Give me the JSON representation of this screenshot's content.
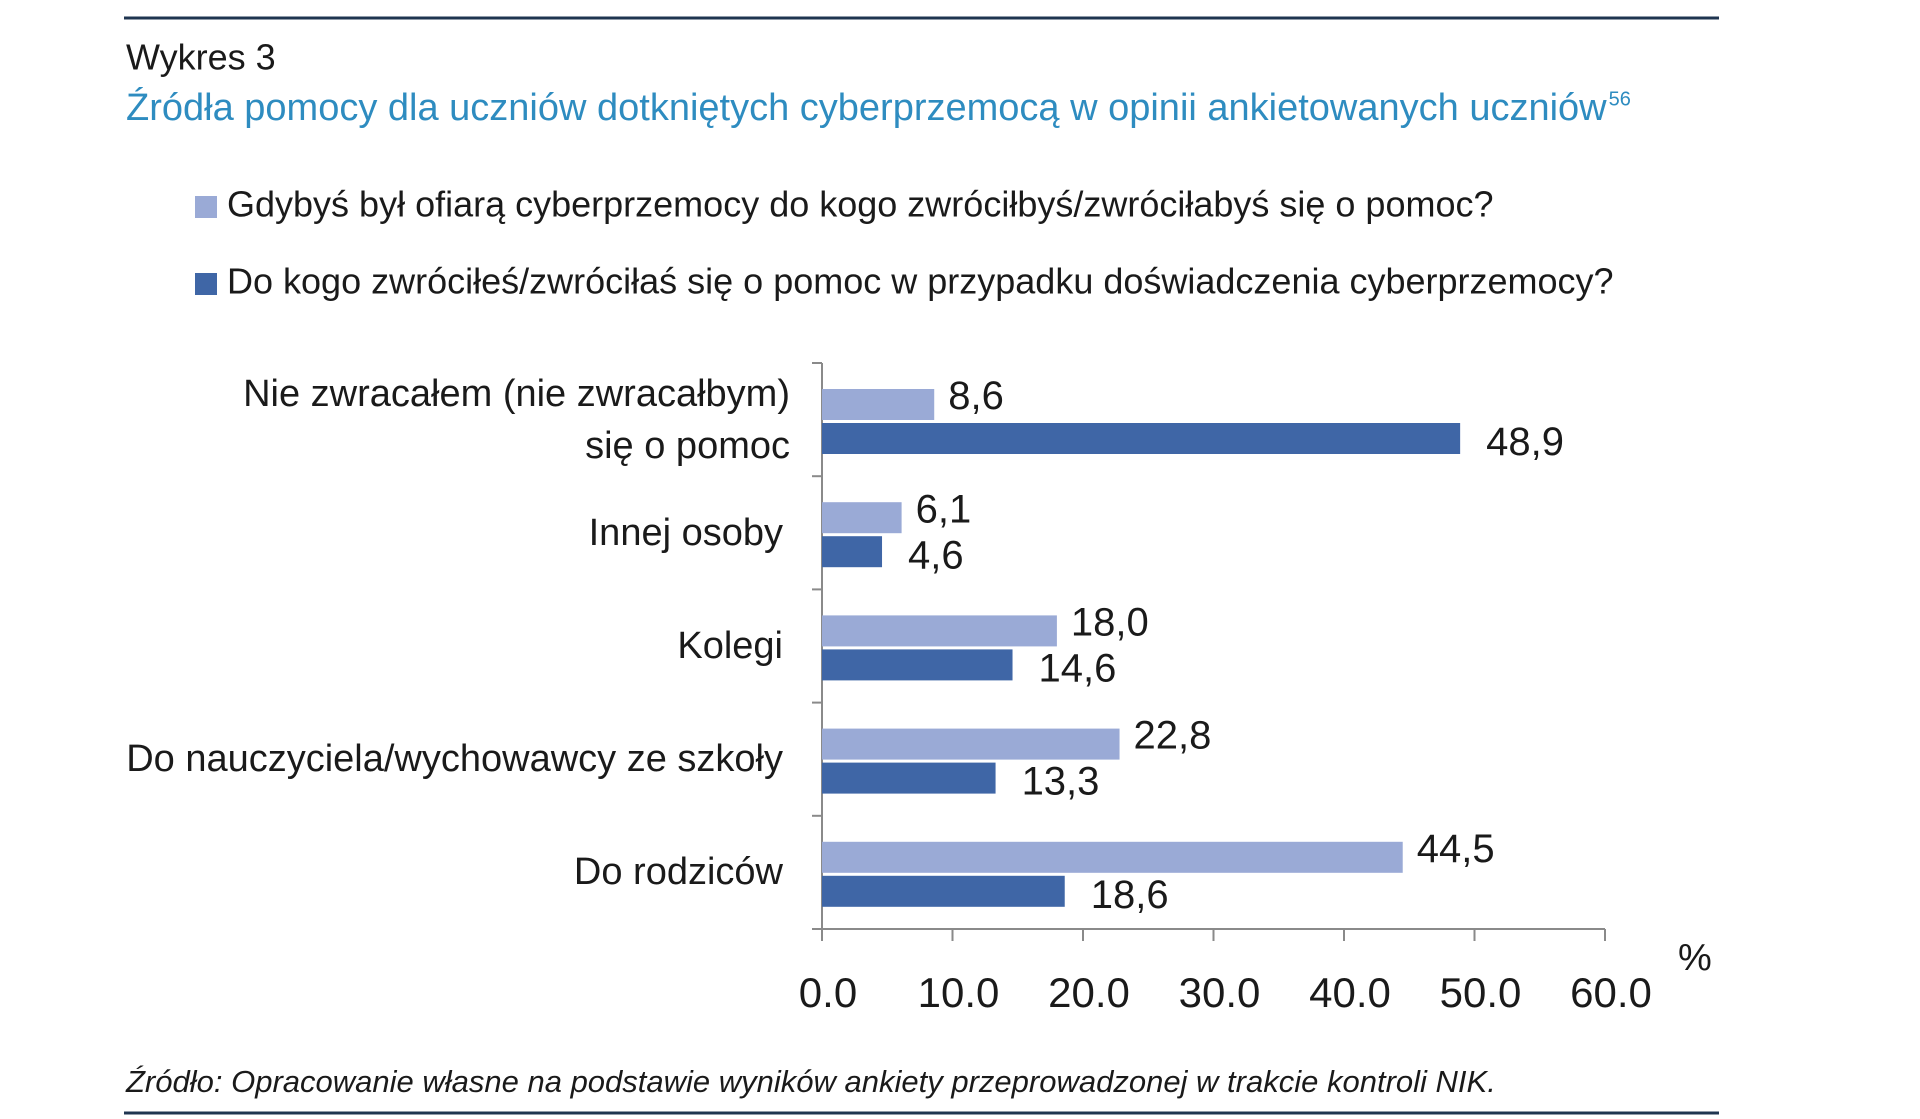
{
  "chart_data": {
    "type": "bar",
    "orientation": "horizontal",
    "title": "Wykres 3",
    "subtitle": "Źródła pomocy dla uczniów dotkniętych cyberprzemocą w opinii ankietowanych uczniów",
    "footnote_mark": "56",
    "categories": [
      "Nie zwracałem (nie zwracałbym)\nsię o pomoc",
      "Innej osoby",
      "Kolegi",
      "Do nauczyciela/wychowawcy ze szkoły",
      "Do rodziców"
    ],
    "series": [
      {
        "name": "Gdybyś był ofiarą cyberprzemocy do kogo zwróciłbyś/zwróciłabyś się o pomoc?",
        "color": "#9aaad6",
        "values": [
          8.6,
          6.1,
          18.0,
          22.8,
          44.5
        ],
        "value_labels": [
          "8,6",
          "6,1",
          "18,0",
          "22,8",
          "44,5"
        ]
      },
      {
        "name": "Do kogo zwróciłeś/zwróciłaś się o pomoc w przypadku doświadczenia cyberprzemocy?",
        "color": "#3f66a6",
        "values": [
          48.9,
          4.6,
          14.6,
          13.3,
          18.6
        ],
        "value_labels": [
          "48,9",
          "4,6",
          "14,6",
          "13,3",
          "18,6"
        ]
      }
    ],
    "xlim": [
      0,
      60
    ],
    "xticks": [
      {
        "value": 0,
        "label": "0.0"
      },
      {
        "value": 10,
        "label": "10.0"
      },
      {
        "value": 20,
        "label": "20.0"
      },
      {
        "value": 30,
        "label": "30.0"
      },
      {
        "value": 40,
        "label": "40.0"
      },
      {
        "value": 50,
        "label": "50.0"
      },
      {
        "value": 60,
        "label": "60.0"
      }
    ],
    "xlabel": "%",
    "source": "Źródło: Opracowanie własne na podstawie wyników ankiety przeprowadzonej w trakcie kontroli NIK."
  }
}
